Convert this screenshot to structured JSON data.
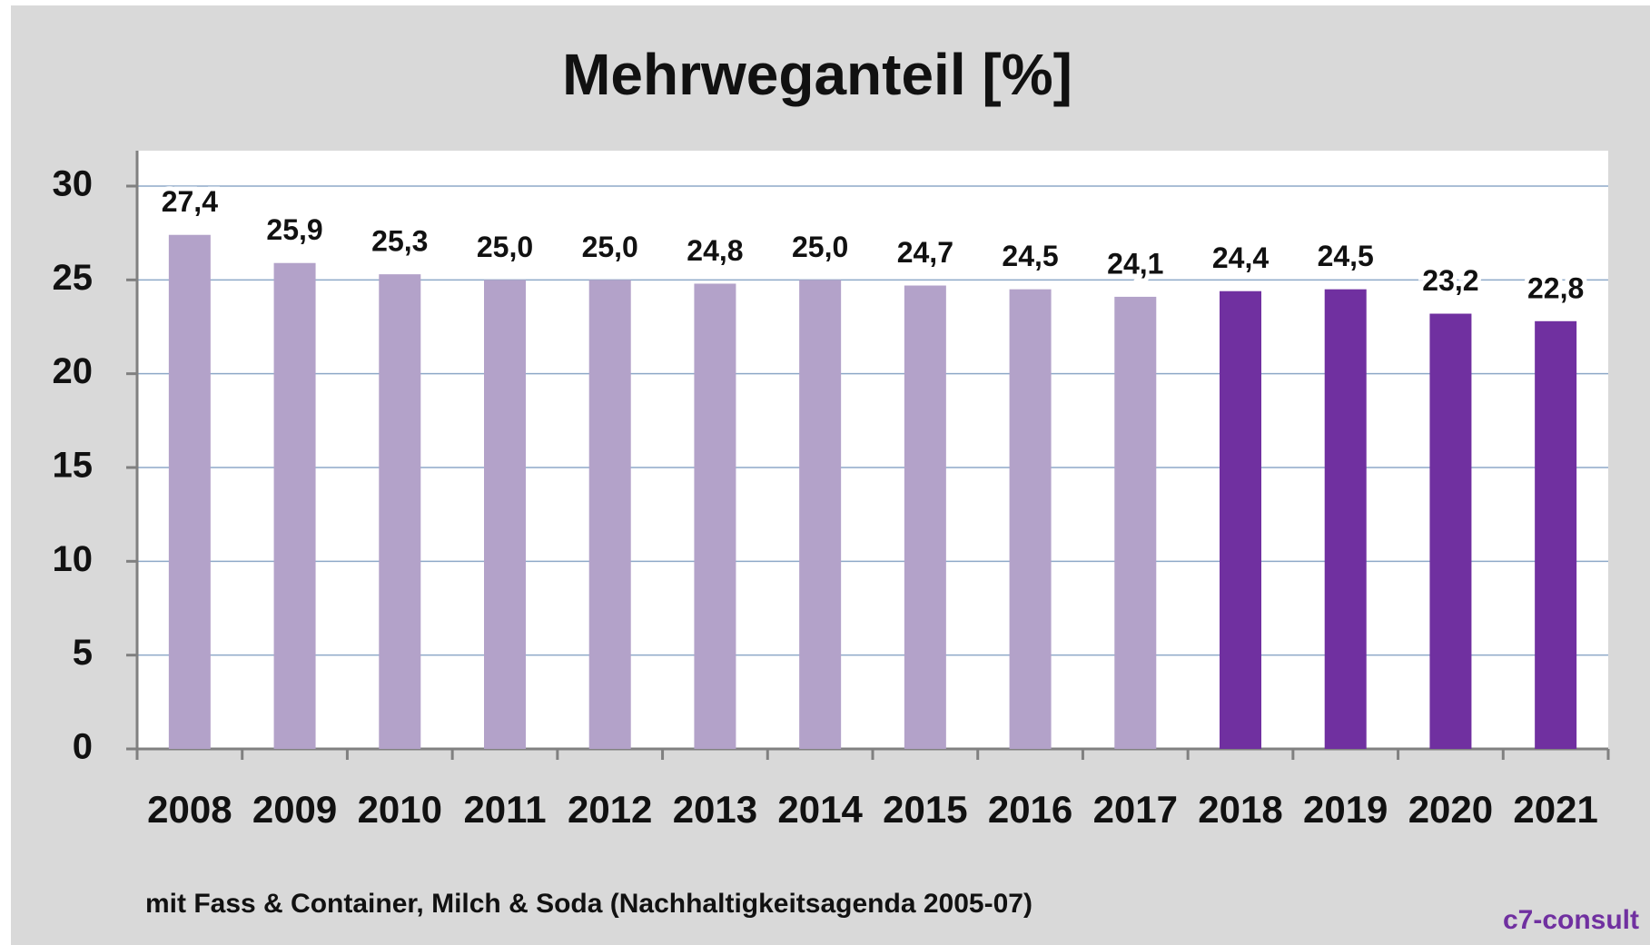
{
  "chart_data": {
    "type": "bar",
    "title": "Mehrweganteil [%]",
    "categories": [
      "2008",
      "2009",
      "2010",
      "2011",
      "2012",
      "2013",
      "2014",
      "2015",
      "2016",
      "2017",
      "2018",
      "2019",
      "2020",
      "2021"
    ],
    "values": [
      27.4,
      25.9,
      25.3,
      25.0,
      25.0,
      24.8,
      25.0,
      24.7,
      24.5,
      24.1,
      24.4,
      24.5,
      23.2,
      22.8
    ],
    "value_labels": [
      "27,4",
      "25,9",
      "25,3",
      "25,0",
      "25,0",
      "24,8",
      "25,0",
      "24,7",
      "24,5",
      "24,1",
      "24,4",
      "24,5",
      "23,2",
      "22,8"
    ],
    "colors": [
      "#b3a2c9",
      "#b3a2c9",
      "#b3a2c9",
      "#b3a2c9",
      "#b3a2c9",
      "#b3a2c9",
      "#b3a2c9",
      "#b3a2c9",
      "#b3a2c9",
      "#b3a2c9",
      "#7030a0",
      "#7030a0",
      "#7030a0",
      "#7030a0"
    ],
    "ylim": [
      0,
      30
    ],
    "yticks": [
      0,
      5,
      10,
      15,
      20,
      25,
      30
    ],
    "grid": true,
    "footnote": "mit Fass & Container, Milch & Soda (Nachhaltigkeitsagenda 2005-07)",
    "logo": "c7-consult"
  }
}
